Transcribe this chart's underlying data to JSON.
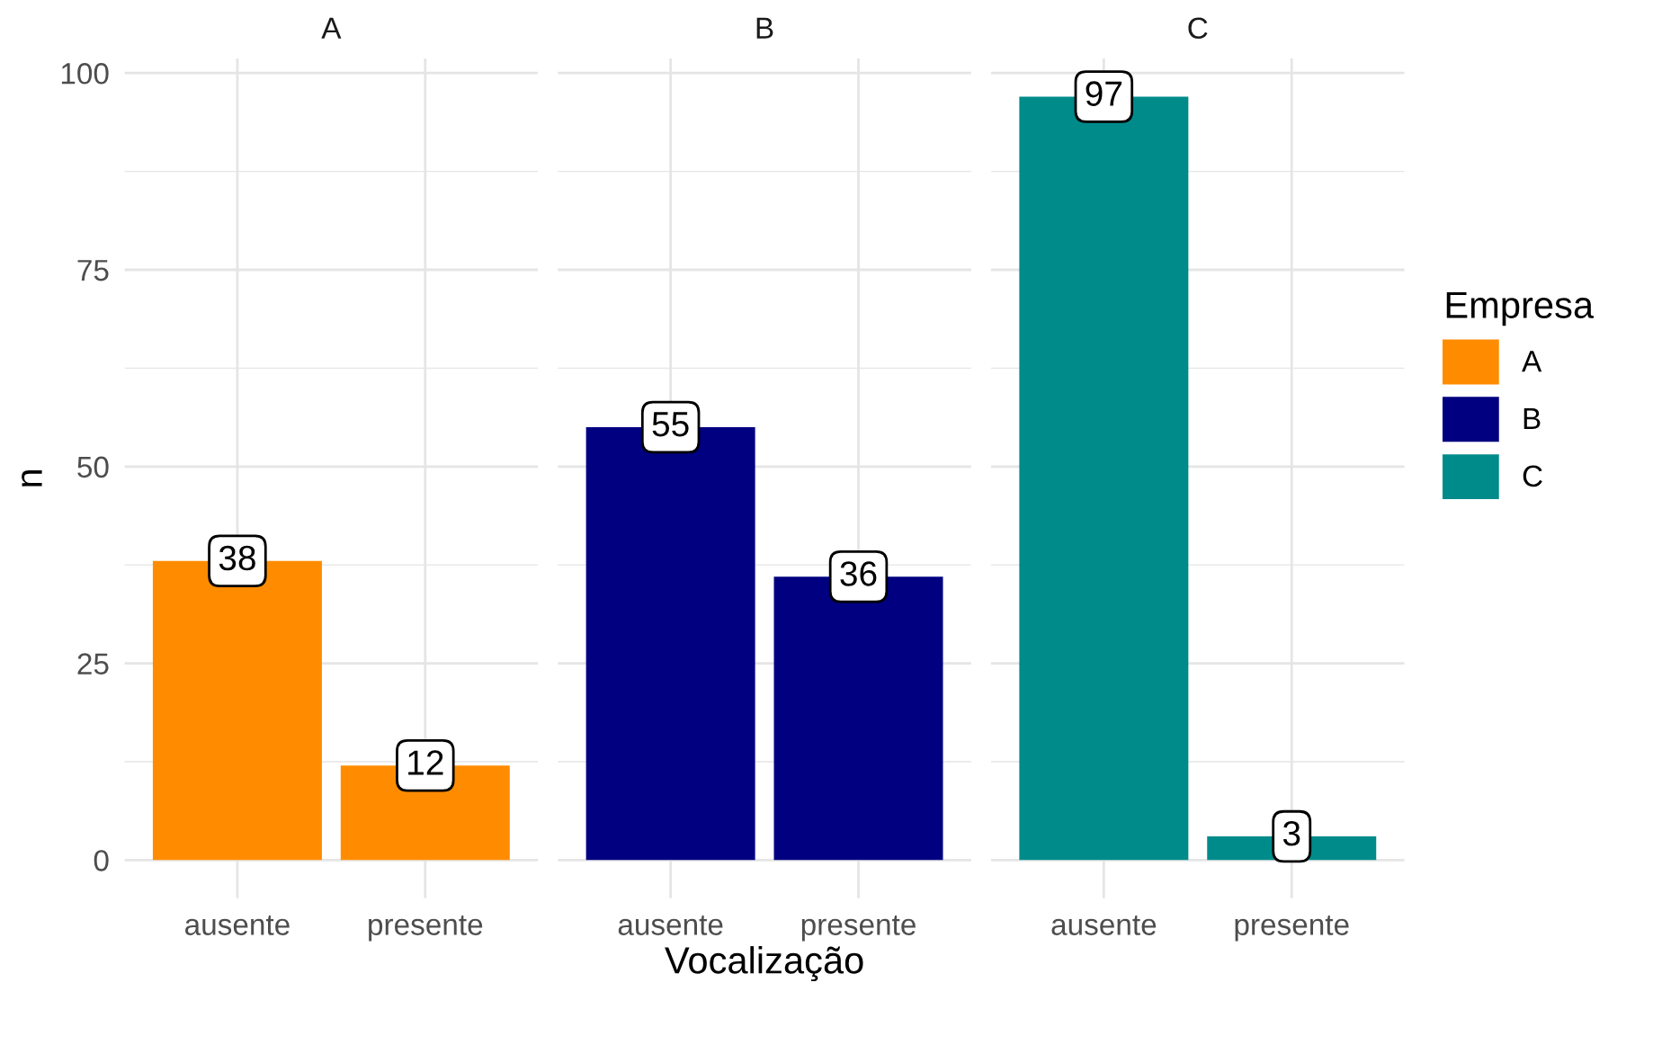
{
  "chart_data": [
    {
      "type": "bar",
      "title": "A",
      "ylabel": "n",
      "categories": [
        "ausente",
        "presente"
      ],
      "series": [
        {
          "name": "A",
          "color": "#ff8c00",
          "values": [
            38,
            12
          ]
        }
      ],
      "ylim": [
        -4.85,
        101.85
      ],
      "yticks": [
        0,
        25,
        50,
        75,
        100
      ],
      "grid": true,
      "data_labels": true
    },
    {
      "type": "bar",
      "title": "B",
      "xlabel": "Vocalização",
      "categories": [
        "ausente",
        "presente"
      ],
      "series": [
        {
          "name": "B",
          "color": "#000080",
          "values": [
            55,
            36
          ]
        }
      ],
      "ylim": [
        -4.85,
        101.85
      ],
      "yticks": [
        0,
        25,
        50,
        75,
        100
      ],
      "grid": true,
      "data_labels": true,
      "tick_labels": "x"
    },
    {
      "type": "bar",
      "title": "C",
      "categories": [
        "ausente",
        "presente"
      ],
      "series": [
        {
          "name": "C",
          "color": "#008b8b",
          "values": [
            97,
            3
          ]
        }
      ],
      "ylim": [
        -4.85,
        101.85
      ],
      "yticks": [
        0,
        25,
        50,
        75,
        100
      ],
      "grid": true,
      "data_labels": true,
      "tick_labels": "x",
      "legend": "right",
      "legend_title": "Empresa"
    }
  ]
}
